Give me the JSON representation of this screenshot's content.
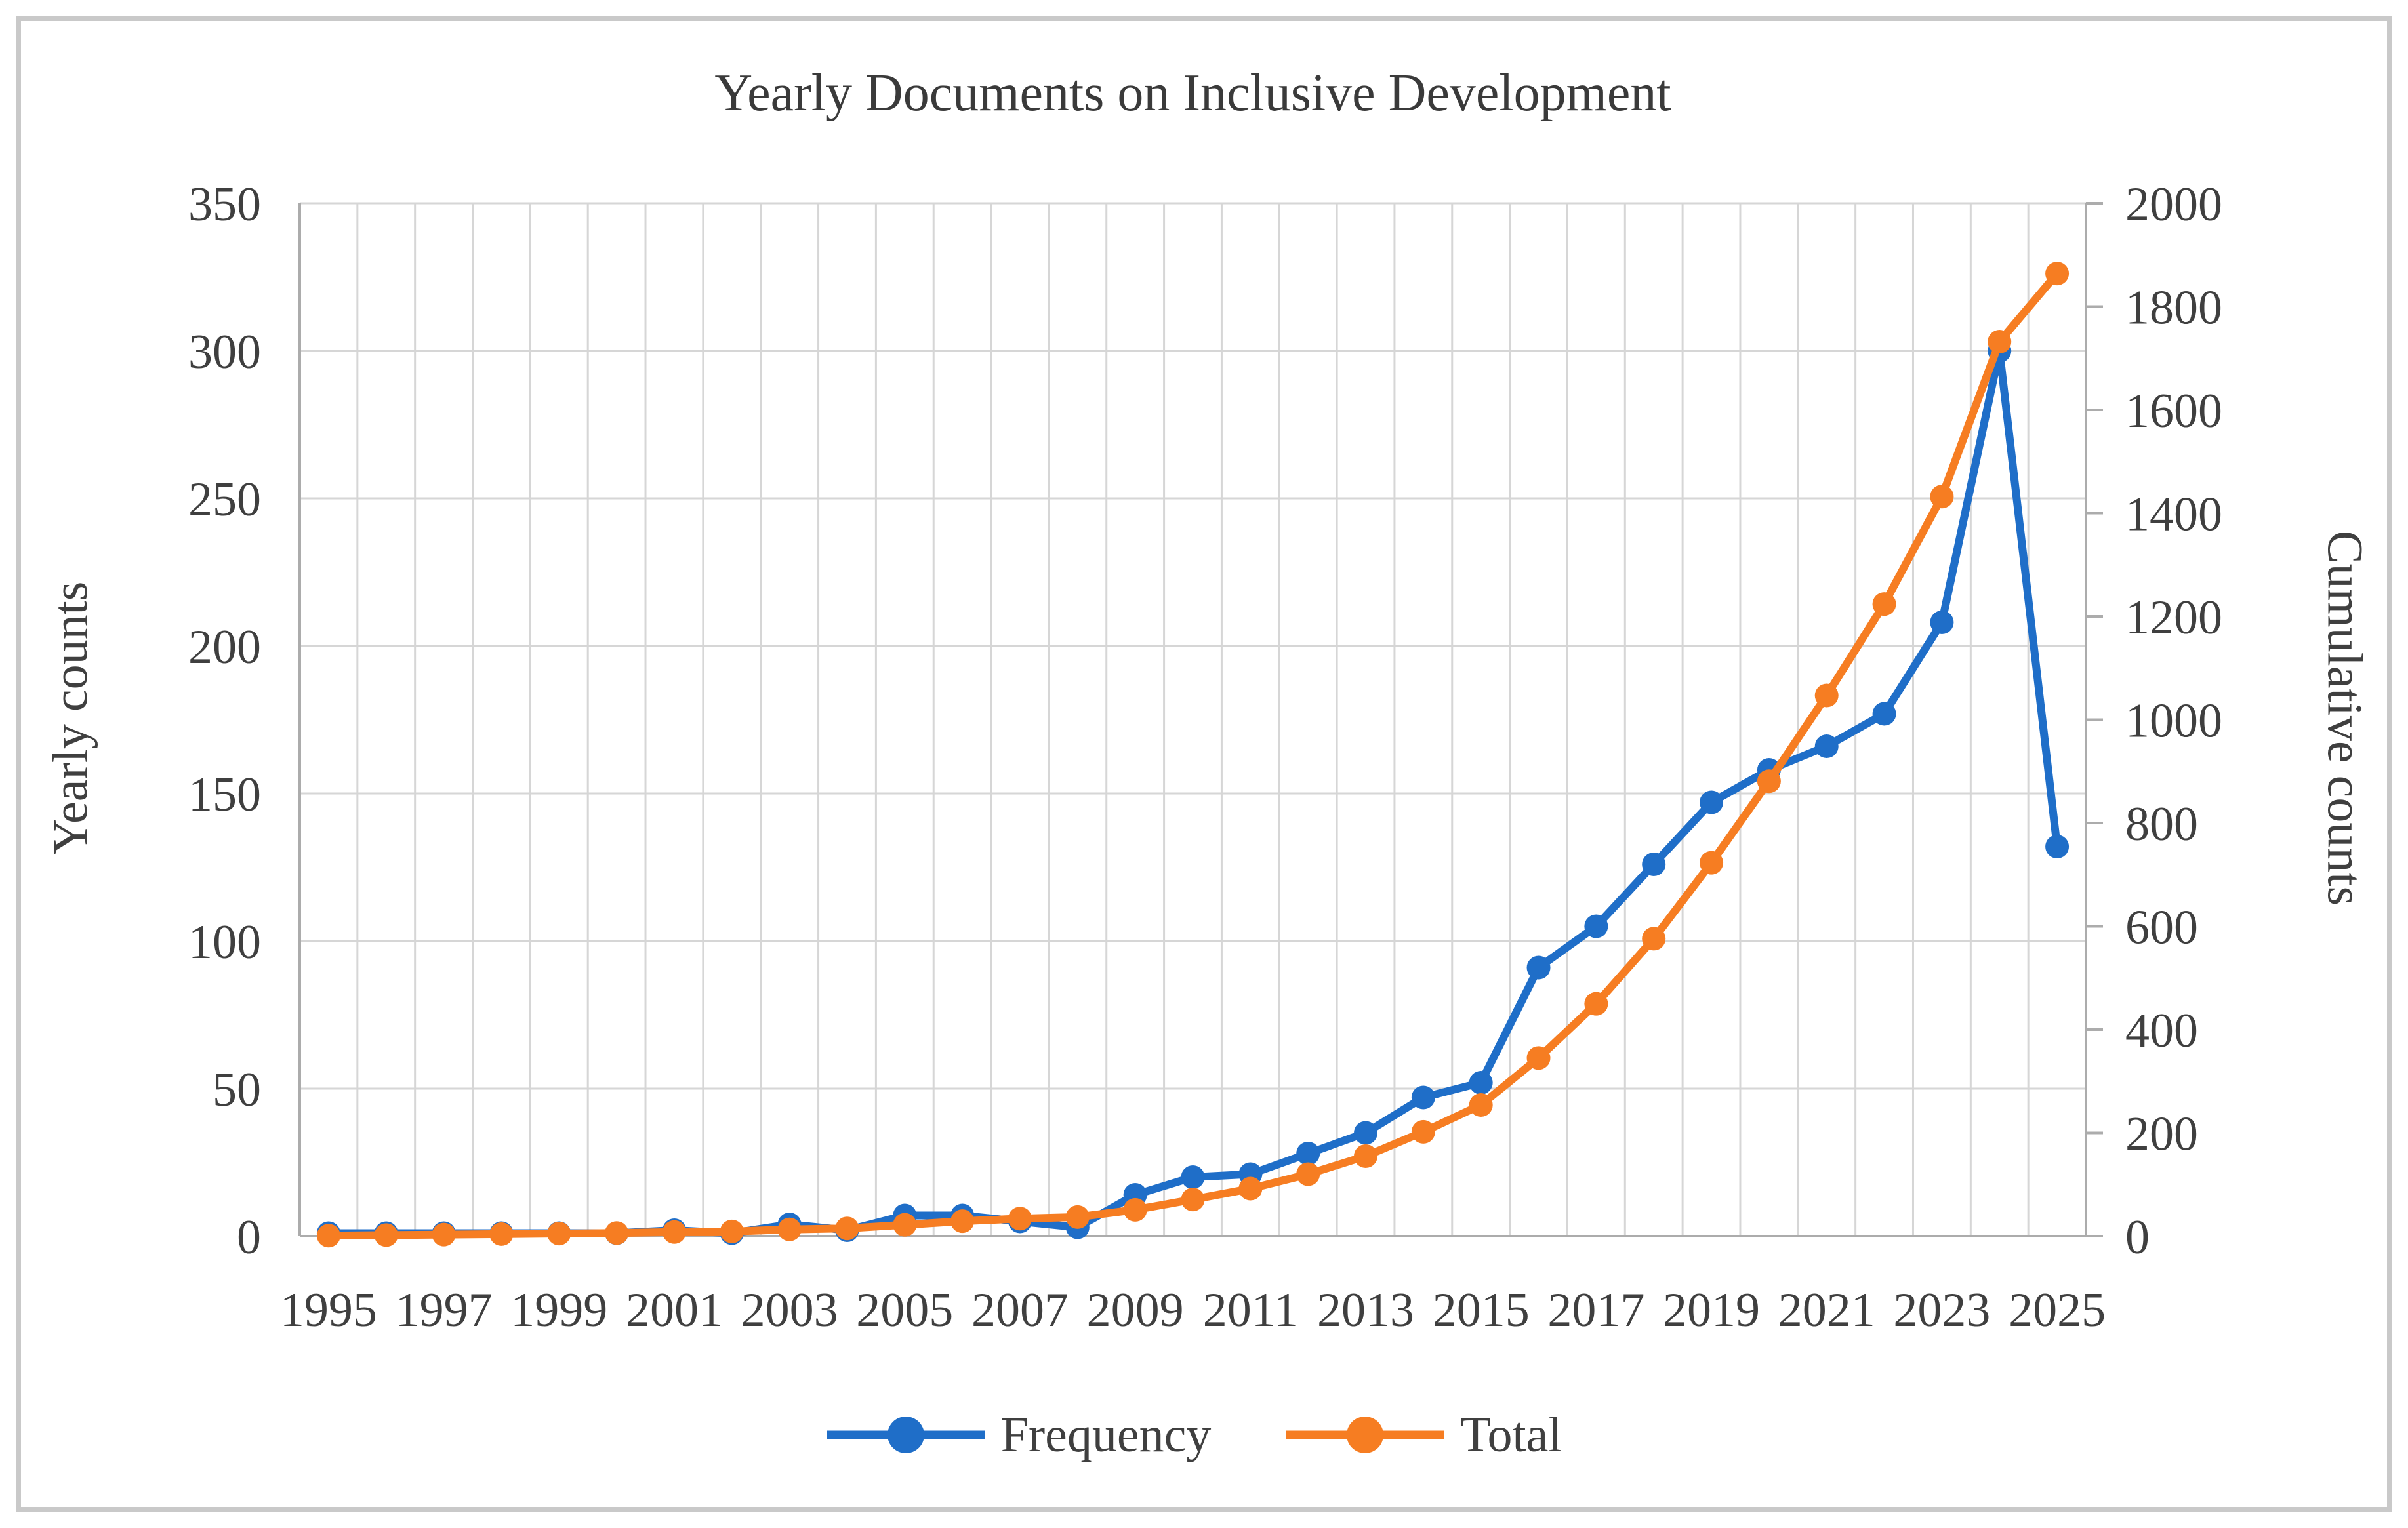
{
  "chart_data": {
    "type": "line",
    "title": "Yearly Documents on Inclusive Development",
    "categories": [
      1995,
      1996,
      1997,
      1998,
      1999,
      2000,
      2001,
      2002,
      2003,
      2004,
      2005,
      2006,
      2007,
      2008,
      2009,
      2010,
      2011,
      2012,
      2013,
      2014,
      2015,
      2016,
      2017,
      2018,
      2019,
      2020,
      2021,
      2022,
      2023,
      2024,
      2025
    ],
    "x_tick_labels": [
      "1995",
      "1997",
      "1999",
      "2001",
      "2003",
      "2005",
      "2007",
      "2009",
      "2011",
      "2013",
      "2015",
      "2017",
      "2019",
      "2021",
      "2023",
      "2025"
    ],
    "left_axis": {
      "label": "Yearly counts",
      "min": 0,
      "max": 350,
      "step": 50,
      "ticks": [
        "0",
        "50",
        "100",
        "150",
        "200",
        "250",
        "300",
        "350"
      ]
    },
    "right_axis": {
      "label": "Cumulative counts",
      "min": 0,
      "max": 2000,
      "step": 200,
      "ticks": [
        "0",
        "200",
        "400",
        "600",
        "800",
        "1000",
        "1200",
        "1400",
        "1600",
        "1800",
        "2000"
      ]
    },
    "grid": true,
    "legend_position": "bottom",
    "series": [
      {
        "name": "Frequency",
        "axis": "left",
        "marker": "circle",
        "color": "#1f6ec8",
        "values": [
          1,
          1,
          1,
          1,
          1,
          1,
          2,
          1,
          4,
          2,
          7,
          7,
          5,
          3,
          14,
          20,
          21,
          28,
          35,
          47,
          52,
          91,
          105,
          126,
          147,
          158,
          166,
          177,
          208,
          300,
          132
        ]
      },
      {
        "name": "Total",
        "axis": "right",
        "marker": "circle",
        "color": "#f67d22",
        "values": [
          1,
          2,
          3,
          4,
          5,
          6,
          8,
          9,
          13,
          15,
          22,
          29,
          34,
          37,
          51,
          71,
          92,
          120,
          155,
          202,
          254,
          345,
          450,
          576,
          723,
          881,
          1047,
          1224,
          1432,
          1732,
          1864
        ]
      }
    ]
  },
  "colors": {
    "gridline": "#d6d6d6",
    "axis_line": "#acacac",
    "tick_text": "#3f3f3f",
    "title_text": "#3a3a3a",
    "figure_border": "#c9c9c9",
    "background": "#ffffff"
  }
}
